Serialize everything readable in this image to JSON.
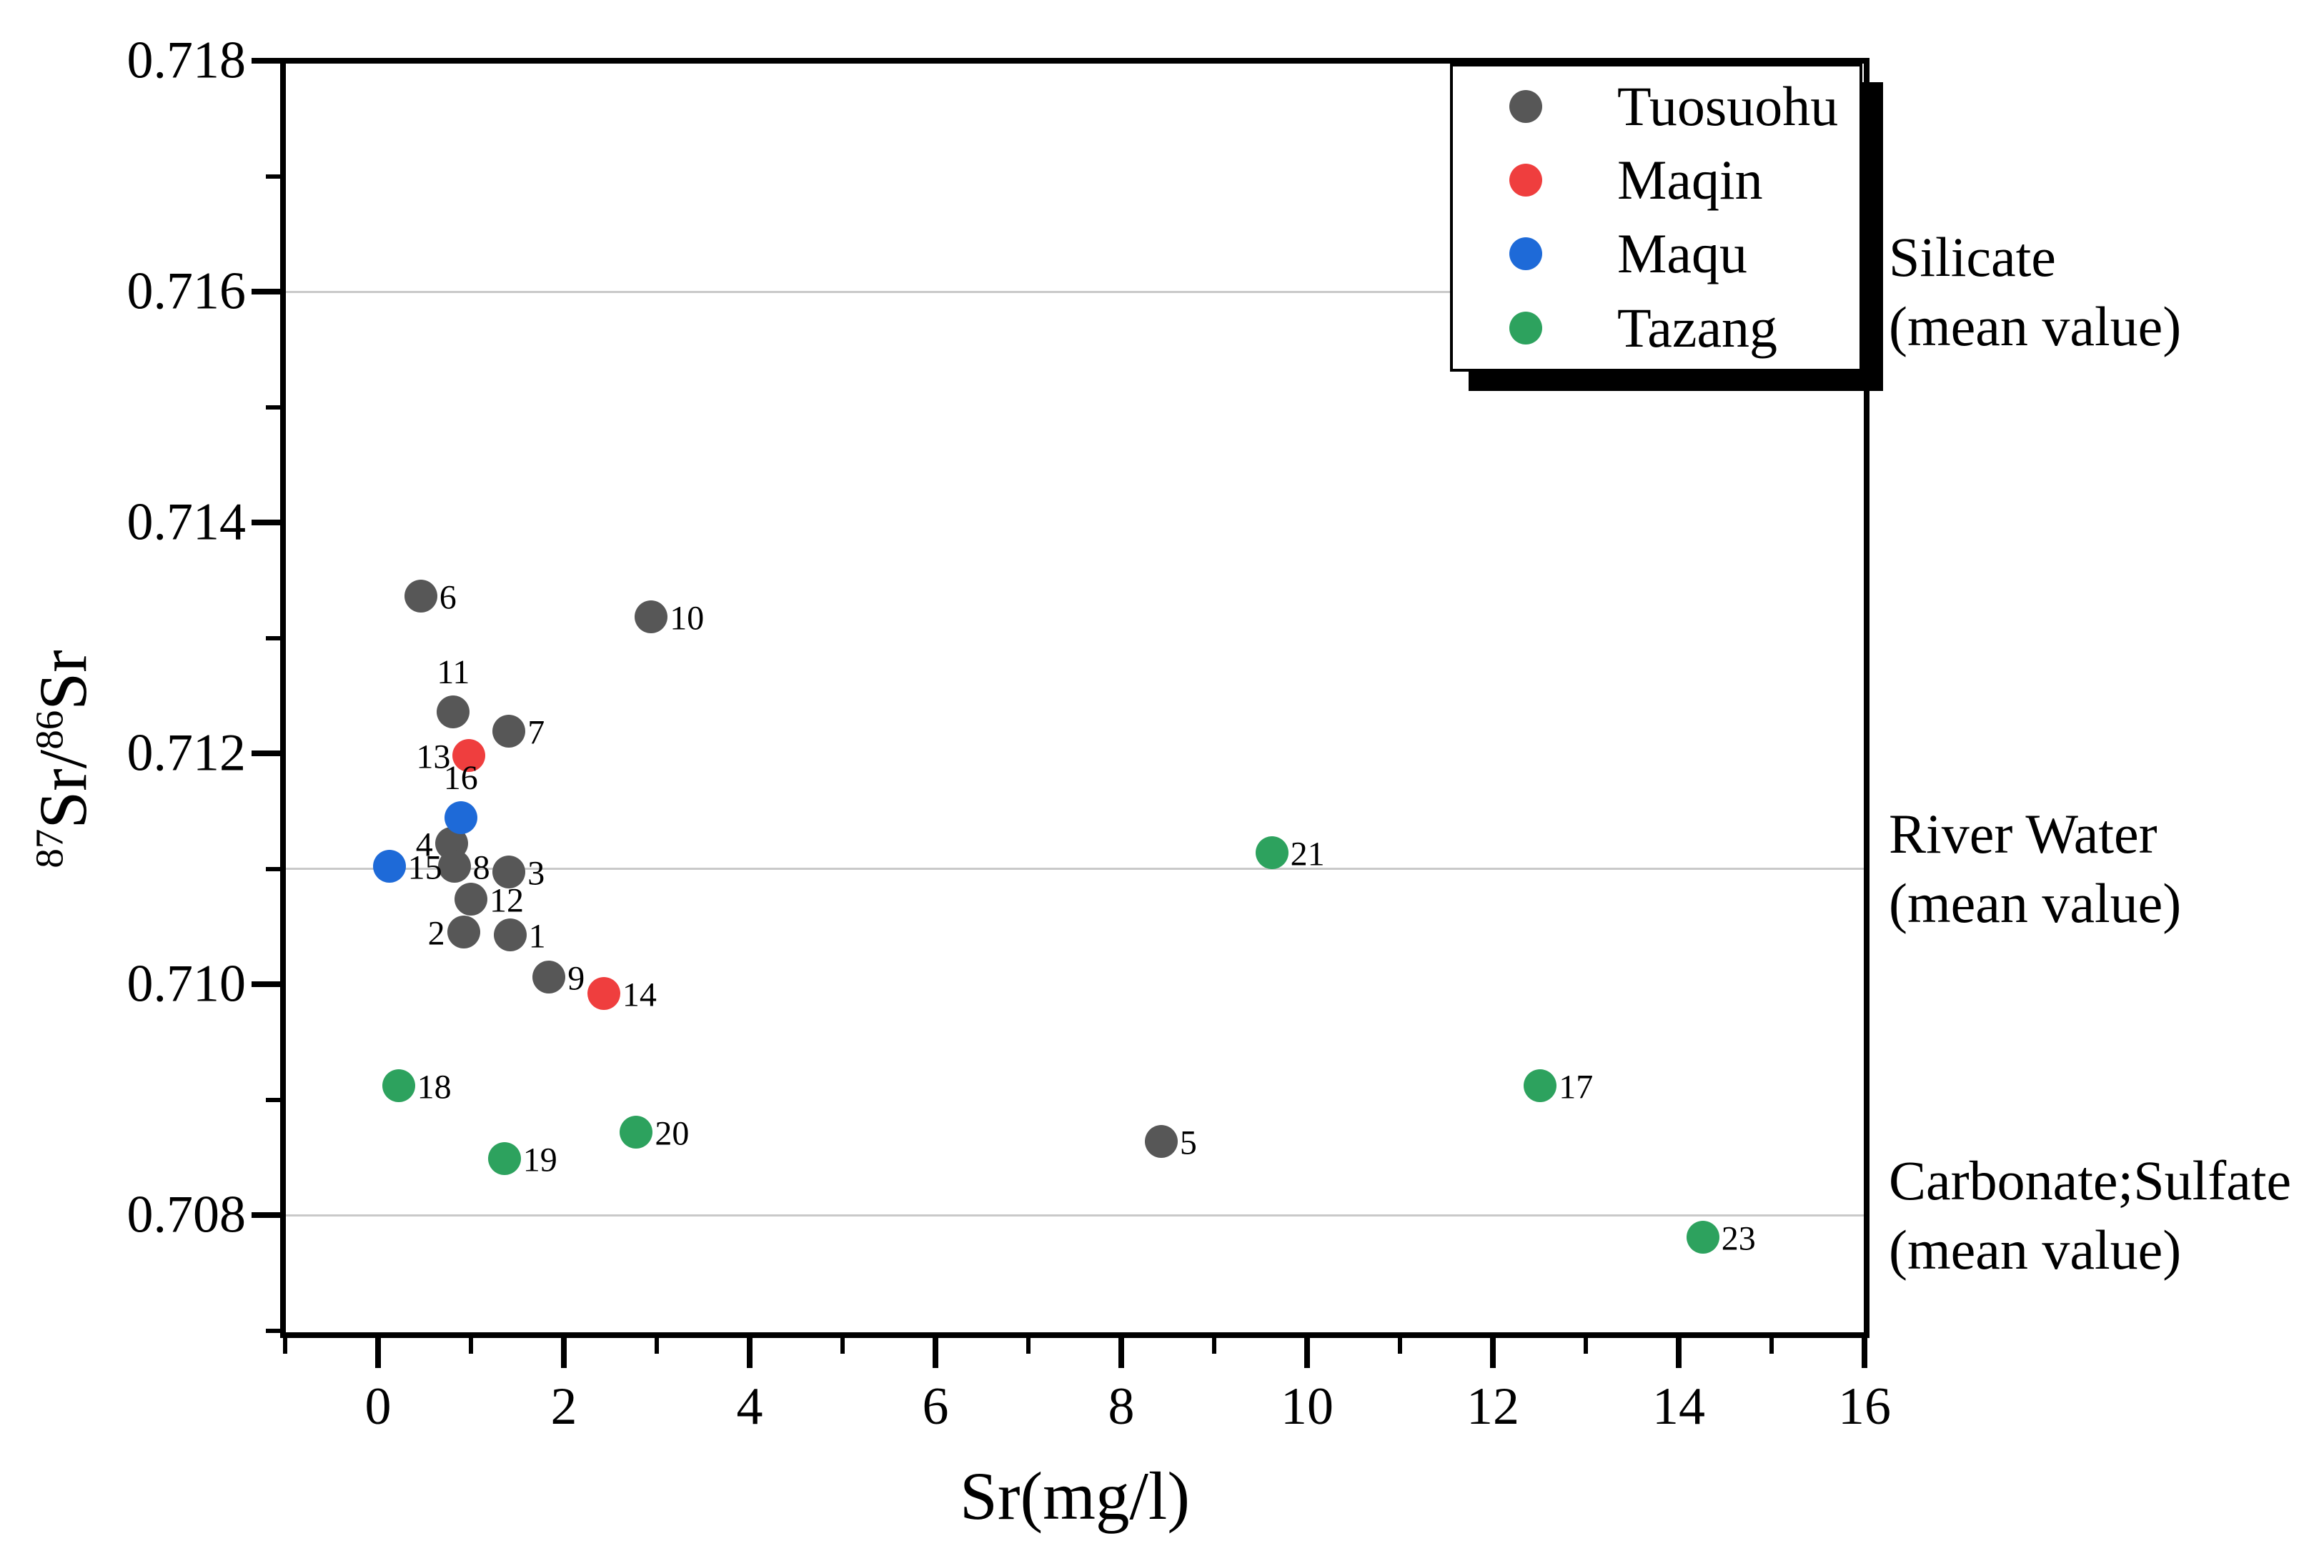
{
  "axes": {
    "x_title": "Sr(mg/l)",
    "y_title_parts": {
      "sup1": "87",
      "mid": "Sr/",
      "sup2": "86",
      "end": "Sr"
    },
    "x_tick_values": [
      0,
      2,
      4,
      6,
      8,
      10,
      12,
      14,
      16
    ],
    "x_tick_labels": [
      "0",
      "2",
      "4",
      "6",
      "8",
      "10",
      "12",
      "14",
      "16"
    ],
    "x_minor_tick_values": [
      -1,
      1,
      3,
      5,
      7,
      9,
      11,
      13,
      15
    ],
    "y_tick_values": [
      0.718,
      0.716,
      0.714,
      0.712,
      0.71,
      0.708
    ],
    "y_tick_labels": [
      "0.718",
      "0.716",
      "0.714",
      "0.712",
      "0.710",
      "0.708"
    ],
    "y_minor_tick_values": [
      0.717,
      0.715,
      0.713,
      0.711,
      0.709,
      0.707
    ],
    "xlim": [
      -1,
      16
    ],
    "ylim": [
      0.707,
      0.718
    ]
  },
  "chart_data": {
    "type": "scatter",
    "title": "",
    "xlabel": "Sr(mg/l)",
    "ylabel": "87Sr/86Sr",
    "xlim": [
      -1,
      16
    ],
    "ylim": [
      0.707,
      0.718
    ],
    "grid": "horizontal-reference-lines-only",
    "legend_position": "top-right-inside",
    "reference_lines": [
      {
        "value": 0.716,
        "line1": "Silicate",
        "line2": "(mean value)"
      },
      {
        "value": 0.711,
        "line1": "River Water",
        "line2": "(mean value)"
      },
      {
        "value": 0.708,
        "line1": "Carbonate;Sulfate",
        "line2": "(mean value)"
      }
    ],
    "series": [
      {
        "name": "Tuosuohu",
        "color": "#575757",
        "points": [
          {
            "id": "1",
            "x": 1.42,
            "y": 0.71043,
            "label_pos": "right"
          },
          {
            "id": "2",
            "x": 0.92,
            "y": 0.71045,
            "label_pos": "left"
          },
          {
            "id": "3",
            "x": 1.41,
            "y": 0.71097,
            "label_pos": "right"
          },
          {
            "id": "4",
            "x": 0.79,
            "y": 0.71122,
            "label_pos": "left"
          },
          {
            "id": "5",
            "x": 8.43,
            "y": 0.70864,
            "label_pos": "right"
          },
          {
            "id": "6",
            "x": 0.46,
            "y": 0.71336,
            "label_pos": "right"
          },
          {
            "id": "7",
            "x": 1.41,
            "y": 0.71219,
            "label_pos": "right"
          },
          {
            "id": "8",
            "x": 0.82,
            "y": 0.71102,
            "label_pos": "right"
          },
          {
            "id": "9",
            "x": 1.84,
            "y": 0.71006,
            "label_pos": "right"
          },
          {
            "id": "10",
            "x": 2.94,
            "y": 0.71318,
            "label_pos": "right"
          },
          {
            "id": "11",
            "x": 0.81,
            "y": 0.71236,
            "label_pos": "above"
          },
          {
            "id": "12",
            "x": 1.0,
            "y": 0.71074,
            "label_pos": "right"
          }
        ]
      },
      {
        "name": "Maqin",
        "color": "#EF3E3E",
        "points": [
          {
            "id": "13",
            "x": 0.98,
            "y": 0.71198,
            "label_pos": "left"
          },
          {
            "id": "14",
            "x": 2.43,
            "y": 0.70992,
            "label_pos": "right"
          }
        ]
      },
      {
        "name": "Maqu",
        "color": "#1E6AD8",
        "points": [
          {
            "id": "15",
            "x": 0.12,
            "y": 0.71102,
            "label_pos": "right"
          },
          {
            "id": "16",
            "x": 0.89,
            "y": 0.71144,
            "label_pos": "above"
          }
        ]
      },
      {
        "name": "Tazang",
        "color": "#2DA25E",
        "points": [
          {
            "id": "17",
            "x": 12.51,
            "y": 0.70912,
            "label_pos": "right"
          },
          {
            "id": "18",
            "x": 0.22,
            "y": 0.70912,
            "label_pos": "right"
          },
          {
            "id": "19",
            "x": 1.36,
            "y": 0.70849,
            "label_pos": "right"
          },
          {
            "id": "20",
            "x": 2.78,
            "y": 0.70872,
            "label_pos": "right"
          },
          {
            "id": "21",
            "x": 9.62,
            "y": 0.71114,
            "label_pos": "right"
          },
          {
            "id": "23",
            "x": 14.26,
            "y": 0.70781,
            "label_pos": "right"
          }
        ]
      }
    ]
  },
  "legend": {
    "items": [
      {
        "label": "Tuosuohu",
        "color": "#575757"
      },
      {
        "label": "Maqin",
        "color": "#EF3E3E"
      },
      {
        "label": "Maqu",
        "color": "#1E6AD8"
      },
      {
        "label": "Tazang",
        "color": "#2DA25E"
      }
    ]
  }
}
